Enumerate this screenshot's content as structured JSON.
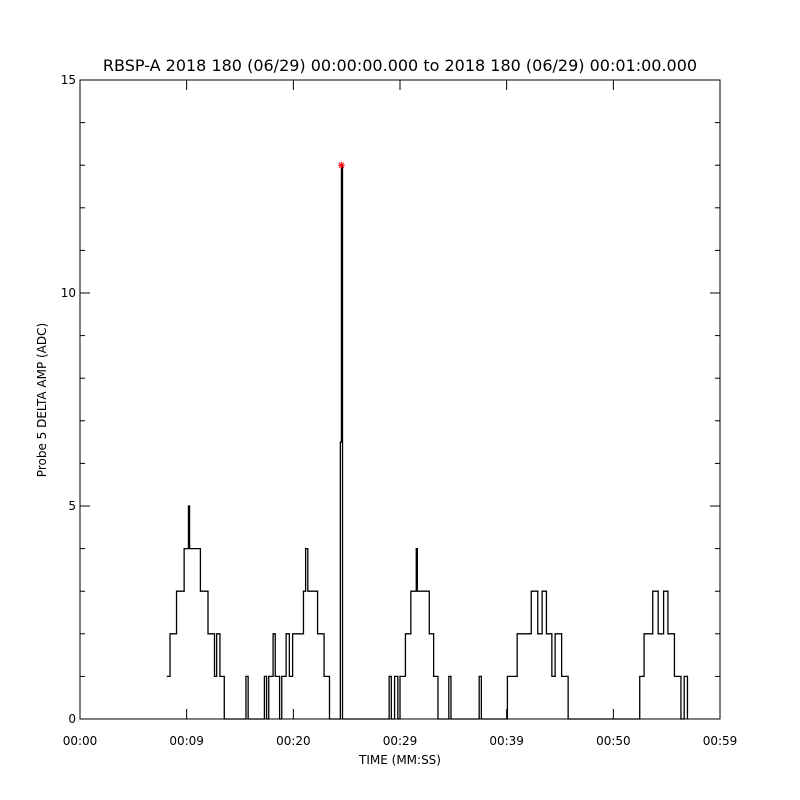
{
  "chart_data": {
    "type": "line",
    "title": "RBSP-A 2018 180 (06/29) 00:00:00.000 to 2018 180 (06/29) 00:01:00.000",
    "x_label": "TIME (MM:SS)",
    "y_label": "Probe 5 DELTA AMP (ADC)",
    "xlim": [
      0,
      59
    ],
    "xticks": [
      {
        "value": 0,
        "label": "00:00"
      },
      {
        "value": 9.83,
        "label": "00:09"
      },
      {
        "value": 19.67,
        "label": "00:20"
      },
      {
        "value": 29.5,
        "label": "00:29"
      },
      {
        "value": 39.33,
        "label": "00:39"
      },
      {
        "value": 49.17,
        "label": "00:50"
      },
      {
        "value": 59,
        "label": "00:59"
      }
    ],
    "ylim": [
      0,
      15
    ],
    "yticks": [
      0,
      5,
      10,
      15
    ],
    "step": true,
    "series": [
      {
        "color": "#000000",
        "x": [
          8.0,
          8.3,
          8.9,
          9.6,
          10.0,
          10.1,
          11.1,
          11.8,
          12.4,
          12.6,
          12.9,
          13.3,
          15.3,
          15.5,
          17.0,
          17.2,
          17.4,
          17.8,
          18.0,
          18.4,
          18.6,
          19.0,
          19.3,
          19.6,
          19.8,
          20.6,
          20.8,
          21.0,
          21.9,
          22.5,
          23.0,
          24.0,
          24.1,
          24.2,
          28.5,
          28.7,
          29.0,
          29.3,
          29.5,
          30.0,
          30.5,
          31.0,
          31.1,
          32.2,
          32.6,
          33.0,
          34.0,
          34.2,
          36.8,
          37.0,
          39.4,
          40.3,
          41.6,
          42.2,
          42.6,
          43.0,
          43.5,
          43.8,
          44.4,
          45.0,
          51.6,
          52.0,
          52.8,
          53.3,
          53.8,
          54.2,
          54.8,
          55.4,
          55.7,
          56.0
        ],
        "values": [
          1,
          2,
          3,
          4,
          5,
          4,
          3,
          2,
          1,
          2,
          1,
          0,
          1,
          0,
          1,
          0,
          1,
          2,
          1,
          0,
          1,
          2,
          1,
          2,
          2,
          3,
          4,
          3,
          2,
          1,
          0,
          6.5,
          13,
          0,
          1,
          0,
          1,
          0,
          1,
          2,
          3,
          4,
          3,
          2,
          1,
          0,
          1,
          0,
          1,
          0,
          1,
          2,
          3,
          2,
          3,
          2,
          1,
          2,
          1,
          0,
          1,
          2,
          3,
          2,
          3,
          2,
          1,
          0,
          1,
          0
        ]
      }
    ],
    "marker": {
      "x": 24.1,
      "y": 13,
      "color": "#ff0000"
    }
  }
}
